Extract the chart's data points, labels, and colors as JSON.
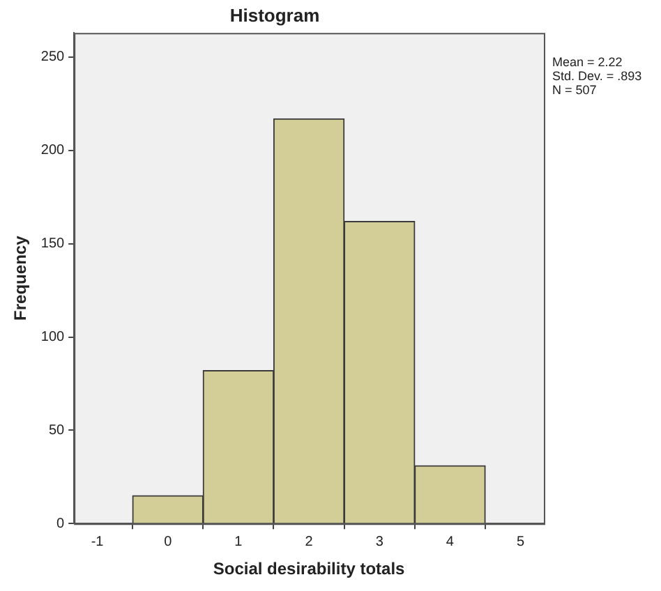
{
  "chart_data": {
    "type": "histogram",
    "title": "Histogram",
    "xlabel": "Social desirability totals",
    "ylabel": "Frequency",
    "bins": [
      -0.5,
      0.5,
      1.5,
      2.5,
      3.5,
      4.5
    ],
    "values": [
      15,
      82,
      217,
      162,
      31
    ],
    "color": "#d3ce97",
    "xlim": [
      -1.33,
      5.33
    ],
    "xticks": [
      -1,
      0,
      1,
      2,
      3,
      4,
      5
    ],
    "ylim": [
      0,
      263
    ],
    "yticks": [
      0,
      50,
      100,
      150,
      200,
      250
    ],
    "grid": false,
    "annotations": [
      "Mean = 2.22",
      "Std. Dev. = .893",
      "N = 507"
    ]
  }
}
